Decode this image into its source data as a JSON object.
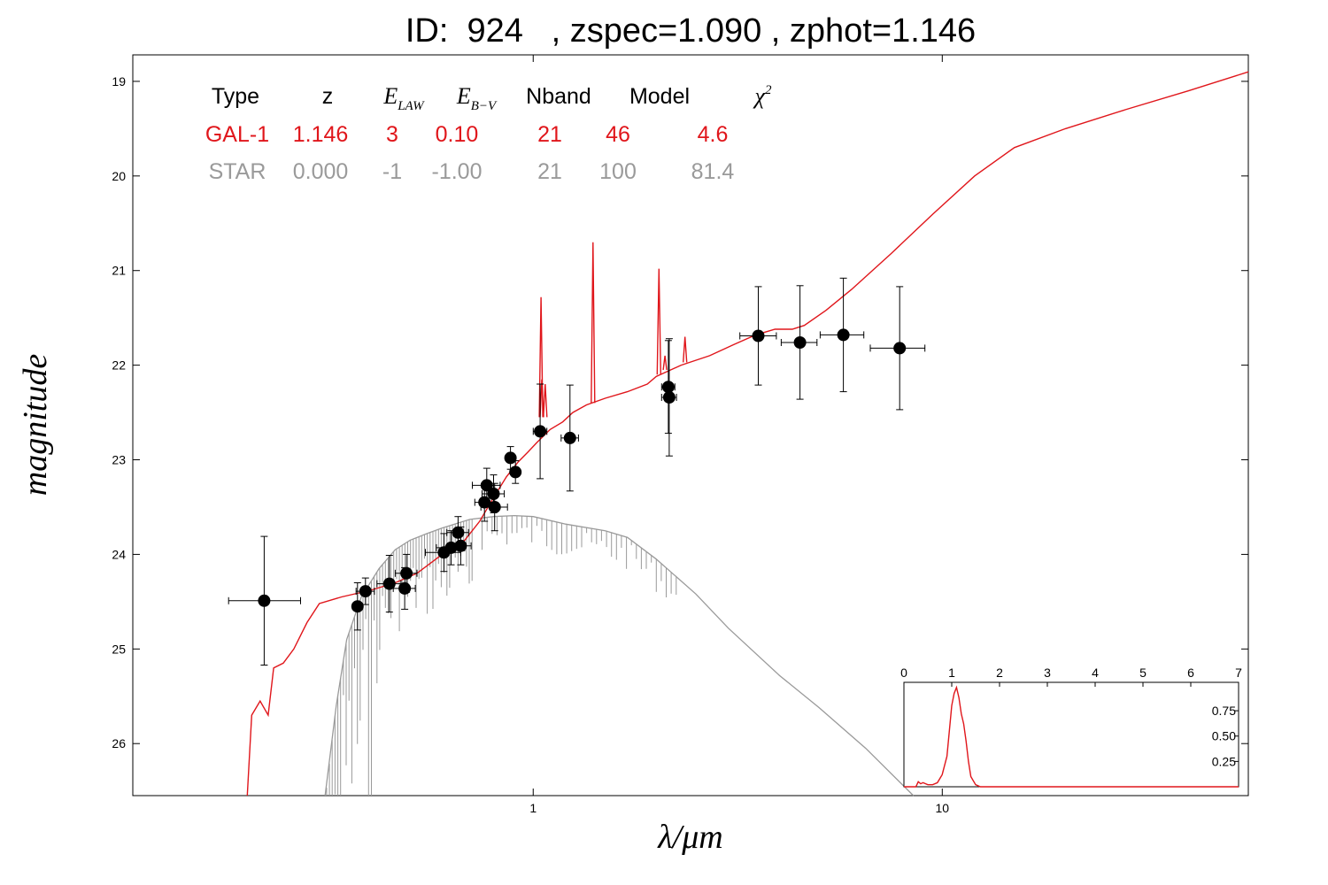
{
  "chart_data": {
    "type": "scatter",
    "title": "ID:  924   , zspec=1.090 , zphot=1.146",
    "xlabel": "λ/μm",
    "ylabel": "magnitude",
    "x_scale": "log",
    "xlim": [
      0.105,
      56
    ],
    "ylim": [
      26.55,
      18.72
    ],
    "x_ticks": [
      "1",
      "10"
    ],
    "y_ticks": [
      "19",
      "20",
      "21",
      "22",
      "23",
      "24",
      "25",
      "26"
    ],
    "fit_table": {
      "headers": [
        "Type",
        "z",
        "E",
        "E",
        "Nband",
        "Model",
        "χ"
      ],
      "header_subscripts": [
        "",
        "",
        "LAW",
        "B−V",
        "",
        "",
        ""
      ],
      "header_superscripts": [
        "",
        "",
        "",
        "",
        "",
        "",
        "2"
      ],
      "rows": [
        {
          "values": [
            "GAL-1",
            "1.146",
            "3",
            "0.10",
            "21",
            "46",
            "4.6"
          ],
          "color": "#e0161b"
        },
        {
          "values": [
            "STAR",
            "0.000",
            "-1",
            "-1.00",
            "21",
            "100",
            "81.4"
          ],
          "color": "#9a9a9a"
        }
      ]
    },
    "photometry": [
      {
        "x": 0.22,
        "y": 24.49,
        "xerr_lo": 0.04,
        "xerr_hi": 0.05,
        "yerr": 0.68
      },
      {
        "x": 0.372,
        "y": 24.55,
        "xerr_lo": 0.01,
        "xerr_hi": 0.01,
        "yerr": 0.25
      },
      {
        "x": 0.389,
        "y": 24.39,
        "xerr_lo": 0.02,
        "xerr_hi": 0.02,
        "yerr": 0.14
      },
      {
        "x": 0.445,
        "y": 24.31,
        "xerr_lo": 0.03,
        "xerr_hi": 0.03,
        "yerr": 0.3
      },
      {
        "x": 0.485,
        "y": 24.36,
        "xerr_lo": 0.03,
        "xerr_hi": 0.03,
        "yerr": 0.22
      },
      {
        "x": 0.49,
        "y": 24.2,
        "xerr_lo": 0.03,
        "xerr_hi": 0.03,
        "yerr": 0.2
      },
      {
        "x": 0.605,
        "y": 23.98,
        "xerr_lo": 0.06,
        "xerr_hi": 0.06,
        "yerr": 0.2
      },
      {
        "x": 0.63,
        "y": 23.93,
        "xerr_lo": 0.05,
        "xerr_hi": 0.05,
        "yerr": 0.18
      },
      {
        "x": 0.655,
        "y": 23.77,
        "xerr_lo": 0.04,
        "xerr_hi": 0.04,
        "yerr": 0.17
      },
      {
        "x": 0.665,
        "y": 23.91,
        "xerr_lo": 0.04,
        "xerr_hi": 0.04,
        "yerr": 0.2
      },
      {
        "x": 0.76,
        "y": 23.45,
        "xerr_lo": 0.04,
        "xerr_hi": 0.04,
        "yerr": 0.2
      },
      {
        "x": 0.77,
        "y": 23.27,
        "xerr_lo": 0.06,
        "xerr_hi": 0.06,
        "yerr": 0.18
      },
      {
        "x": 0.8,
        "y": 23.36,
        "xerr_lo": 0.05,
        "xerr_hi": 0.05,
        "yerr": 0.2
      },
      {
        "x": 0.805,
        "y": 23.5,
        "xerr_lo": 0.06,
        "xerr_hi": 0.06,
        "yerr": 0.25
      },
      {
        "x": 0.88,
        "y": 22.98,
        "xerr_lo": 0.02,
        "xerr_hi": 0.02,
        "yerr": 0.12
      },
      {
        "x": 0.905,
        "y": 23.13,
        "xerr_lo": 0.02,
        "xerr_hi": 0.02,
        "yerr": 0.12
      },
      {
        "x": 1.04,
        "y": 22.7,
        "xerr_lo": 0.04,
        "xerr_hi": 0.04,
        "yerr": 0.5
      },
      {
        "x": 1.23,
        "y": 22.77,
        "xerr_lo": 0.06,
        "xerr_hi": 0.06,
        "yerr": 0.56
      },
      {
        "x": 2.14,
        "y": 22.23,
        "xerr_lo": 0.08,
        "xerr_hi": 0.08,
        "yerr": 0.49
      },
      {
        "x": 2.15,
        "y": 22.34,
        "xerr_lo": 0.09,
        "xerr_hi": 0.09,
        "yerr": 0.62
      },
      {
        "x": 3.55,
        "y": 21.69,
        "xerr_lo": 0.35,
        "xerr_hi": 0.38,
        "yerr": 0.52
      },
      {
        "x": 4.49,
        "y": 21.76,
        "xerr_lo": 0.45,
        "xerr_hi": 0.45,
        "yerr": 0.6
      },
      {
        "x": 5.73,
        "y": 21.68,
        "xerr_lo": 0.7,
        "xerr_hi": 0.7,
        "yerr": 0.6
      },
      {
        "x": 7.87,
        "y": 21.82,
        "xerr_lo": 1.2,
        "xerr_hi": 1.2,
        "yerr": 0.65
      }
    ],
    "galaxy_model": {
      "color": "#e0161b",
      "points": [
        [
          0.2,
          26.6
        ],
        [
          0.205,
          25.7
        ],
        [
          0.215,
          25.55
        ],
        [
          0.225,
          25.7
        ],
        [
          0.232,
          25.2
        ],
        [
          0.245,
          25.15
        ],
        [
          0.26,
          25.0
        ],
        [
          0.28,
          24.72
        ],
        [
          0.3,
          24.52
        ],
        [
          0.34,
          24.45
        ],
        [
          0.4,
          24.38
        ],
        [
          0.46,
          24.3
        ],
        [
          0.52,
          24.2
        ],
        [
          0.57,
          24.07
        ],
        [
          0.62,
          23.95
        ],
        [
          0.68,
          23.85
        ],
        [
          0.74,
          23.65
        ],
        [
          0.8,
          23.4
        ],
        [
          0.86,
          23.18
        ],
        [
          0.92,
          23.02
        ],
        [
          0.97,
          22.92
        ],
        [
          1.02,
          22.82
        ],
        [
          1.1,
          22.68
        ],
        [
          1.18,
          22.6
        ],
        [
          1.25,
          22.5
        ],
        [
          1.35,
          22.42
        ],
        [
          1.5,
          22.35
        ],
        [
          1.7,
          22.28
        ],
        [
          1.9,
          22.2
        ],
        [
          2.0,
          22.12
        ],
        [
          2.3,
          22.0
        ],
        [
          2.7,
          21.9
        ],
        [
          3.1,
          21.78
        ],
        [
          3.5,
          21.68
        ],
        [
          3.9,
          21.62
        ],
        [
          4.3,
          21.62
        ],
        [
          4.6,
          21.58
        ],
        [
          5.2,
          21.42
        ],
        [
          6.0,
          21.2
        ],
        [
          7.5,
          20.82
        ],
        [
          9.5,
          20.4
        ],
        [
          12.0,
          20.0
        ],
        [
          15.0,
          19.7
        ],
        [
          20.0,
          19.5
        ],
        [
          28.0,
          19.3
        ],
        [
          40.0,
          19.1
        ],
        [
          56.0,
          18.9
        ]
      ],
      "spikes": [
        [
          1.045,
          22.55,
          21.28
        ],
        [
          1.05,
          22.55,
          22.15
        ],
        [
          1.07,
          22.55,
          22.2
        ],
        [
          1.4,
          22.4,
          20.7
        ],
        [
          2.03,
          22.1,
          20.98
        ],
        [
          2.1,
          22.05,
          21.9
        ],
        [
          2.35,
          21.97,
          21.7
        ]
      ]
    },
    "star_model": {
      "color": "#9a9a9a",
      "points": [
        [
          0.31,
          26.6
        ],
        [
          0.33,
          25.6
        ],
        [
          0.35,
          24.9
        ],
        [
          0.38,
          24.45
        ],
        [
          0.42,
          24.15
        ],
        [
          0.46,
          23.95
        ],
        [
          0.5,
          23.85
        ],
        [
          0.55,
          23.78
        ],
        [
          0.6,
          23.72
        ],
        [
          0.7,
          23.63
        ],
        [
          0.8,
          23.6
        ],
        [
          0.9,
          23.59
        ],
        [
          1.0,
          23.6
        ],
        [
          1.2,
          23.68
        ],
        [
          1.5,
          23.75
        ],
        [
          1.7,
          23.82
        ],
        [
          2.0,
          24.05
        ],
        [
          2.5,
          24.42
        ],
        [
          3.0,
          24.78
        ],
        [
          4.0,
          25.28
        ],
        [
          5.0,
          25.62
        ],
        [
          6.5,
          26.05
        ],
        [
          8.5,
          26.6
        ]
      ],
      "noise_range": [
        0.28,
        0.72
      ]
    },
    "inset": {
      "type": "line",
      "x_ticks": [
        "0",
        "1",
        "2",
        "3",
        "4",
        "5",
        "6",
        "7"
      ],
      "y_ticks": [
        "0.25",
        "0.50",
        "0.75"
      ],
      "xlim": [
        0,
        7
      ],
      "ylim": [
        0,
        1.03
      ],
      "color": "#e0161b",
      "points": [
        [
          0,
          0
        ],
        [
          0.25,
          0
        ],
        [
          0.3,
          0.05
        ],
        [
          0.35,
          0.03
        ],
        [
          0.4,
          0.04
        ],
        [
          0.5,
          0.02
        ],
        [
          0.6,
          0.02
        ],
        [
          0.7,
          0.04
        ],
        [
          0.8,
          0.12
        ],
        [
          0.9,
          0.3
        ],
        [
          0.95,
          0.55
        ],
        [
          1.0,
          0.8
        ],
        [
          1.05,
          0.92
        ],
        [
          1.1,
          0.98
        ],
        [
          1.15,
          0.88
        ],
        [
          1.2,
          0.72
        ],
        [
          1.25,
          0.62
        ],
        [
          1.3,
          0.45
        ],
        [
          1.35,
          0.25
        ],
        [
          1.4,
          0.1
        ],
        [
          1.5,
          0.02
        ],
        [
          1.6,
          0
        ],
        [
          7,
          0
        ]
      ]
    }
  }
}
